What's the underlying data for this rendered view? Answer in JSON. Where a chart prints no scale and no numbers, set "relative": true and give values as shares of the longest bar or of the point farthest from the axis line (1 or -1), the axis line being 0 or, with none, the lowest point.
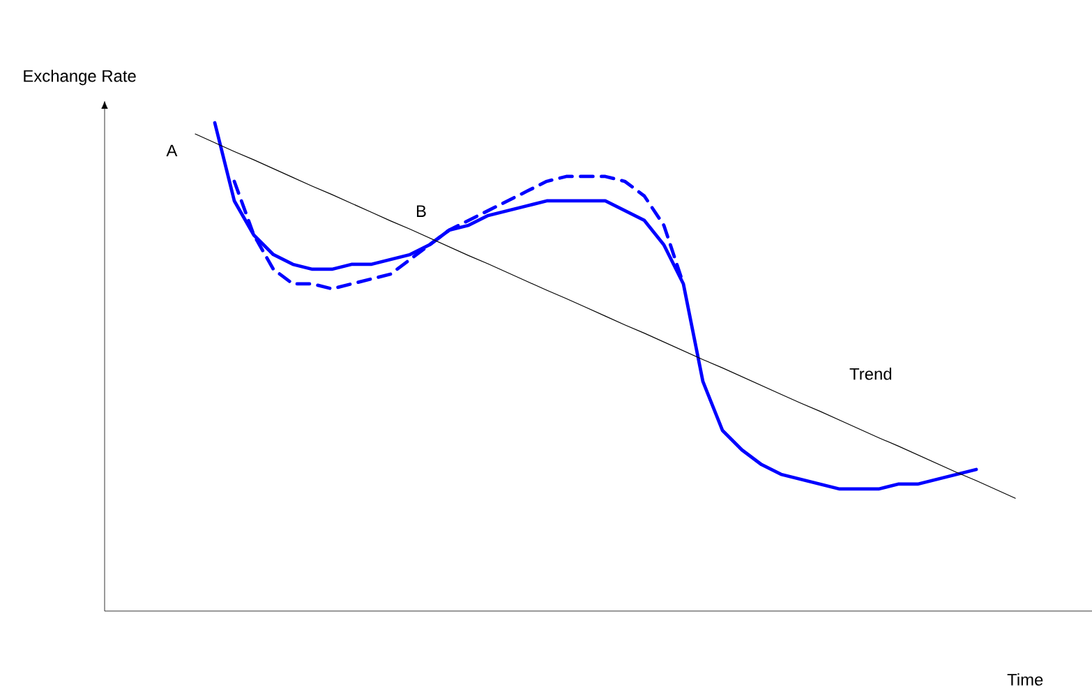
{
  "chart_data": {
    "type": "line",
    "relative": true,
    "xlabel": "Time",
    "ylabel": "Exchange Rate",
    "annotations": [
      "A",
      "B"
    ],
    "categories": [
      null,
      null,
      null,
      null,
      null,
      null,
      null,
      null,
      null,
      null,
      null,
      null,
      null,
      null,
      null,
      null,
      null,
      null,
      null,
      null,
      null,
      null,
      null,
      null,
      null,
      null,
      null,
      null,
      null,
      null,
      null,
      null,
      null,
      null,
      null,
      null,
      null,
      null,
      null,
      null,
      null,
      null,
      null
    ],
    "series": [
      {
        "color": "#0000ff",
        "line_style": "solid",
        "values": [
          null,
          1.0,
          0.84,
          0.77,
          0.73,
          0.71,
          0.7,
          0.7,
          0.71,
          0.71,
          0.72,
          0.73,
          0.75,
          0.78,
          0.79,
          0.81,
          0.82,
          0.83,
          0.84,
          0.84,
          0.84,
          0.84,
          0.82,
          0.8,
          0.75,
          0.67,
          0.47,
          0.37,
          0.33,
          0.3,
          0.28,
          0.27,
          0.26,
          0.25,
          0.25,
          0.25,
          0.26,
          0.26,
          0.27,
          0.28,
          0.29,
          null,
          null
        ]
      },
      {
        "color": "#0000ff",
        "line_style": "dashed",
        "values": [
          null,
          null,
          0.88,
          0.77,
          0.7,
          0.67,
          0.67,
          0.66,
          0.67,
          0.68,
          0.69,
          0.72,
          0.75,
          0.78,
          0.8,
          0.82,
          0.84,
          0.86,
          0.88,
          0.89,
          0.89,
          0.89,
          0.88,
          0.85,
          0.79,
          0.67,
          null,
          null,
          null,
          null,
          null,
          null,
          null,
          null,
          null,
          null,
          null,
          null,
          null,
          null,
          null,
          null,
          null
        ]
      },
      {
        "name": "Trend",
        "color": "#000000",
        "line_style": "solid",
        "values": [
          0.977,
          0.959,
          0.941,
          0.924,
          0.906,
          0.888,
          0.87,
          0.853,
          0.835,
          0.817,
          0.799,
          0.782,
          0.764,
          0.746,
          0.728,
          0.711,
          0.693,
          0.675,
          0.657,
          0.64,
          0.622,
          0.604,
          0.586,
          0.569,
          0.551,
          0.533,
          0.515,
          0.498,
          0.48,
          0.462,
          0.444,
          0.426,
          0.409,
          0.391,
          0.373,
          0.355,
          0.338,
          0.32,
          0.302,
          0.284,
          0.267,
          0.249,
          0.231
        ]
      }
    ]
  }
}
